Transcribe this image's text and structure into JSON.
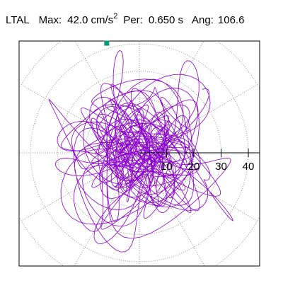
{
  "header": {
    "station": "LTAL",
    "max_label": "Max:",
    "max_value": "42.0 cm/s",
    "max_exponent": "2",
    "per_label": "Per:",
    "per_value": "0.650 s",
    "ang_label": "Ang:",
    "ang_value": "106.6"
  },
  "chart_data": {
    "type": "polar-orbit",
    "title": "LTAL  Max: 42.0 cm/s2  Per: 0.650 s  Ang: 106.6",
    "max_amplitude": 42.0,
    "max_units": "cm/s2",
    "period_s": 0.65,
    "angle_deg": 106.6,
    "r_ticks": [
      10,
      20,
      30,
      40
    ],
    "r_tick_labels": [
      "10",
      "20",
      "30",
      "40"
    ],
    "rings": [
      10,
      20,
      30,
      40,
      50
    ],
    "grid": true,
    "grid_style": "dotted",
    "radial_lines_every_deg": 30,
    "max_marker": {
      "r": 42.0,
      "theta_deg": 106.6
    },
    "colors": {
      "trace": "#8a00cc",
      "marker": "#009977",
      "grid": "#808080",
      "axis": "#000000",
      "frame": "#000000"
    }
  }
}
